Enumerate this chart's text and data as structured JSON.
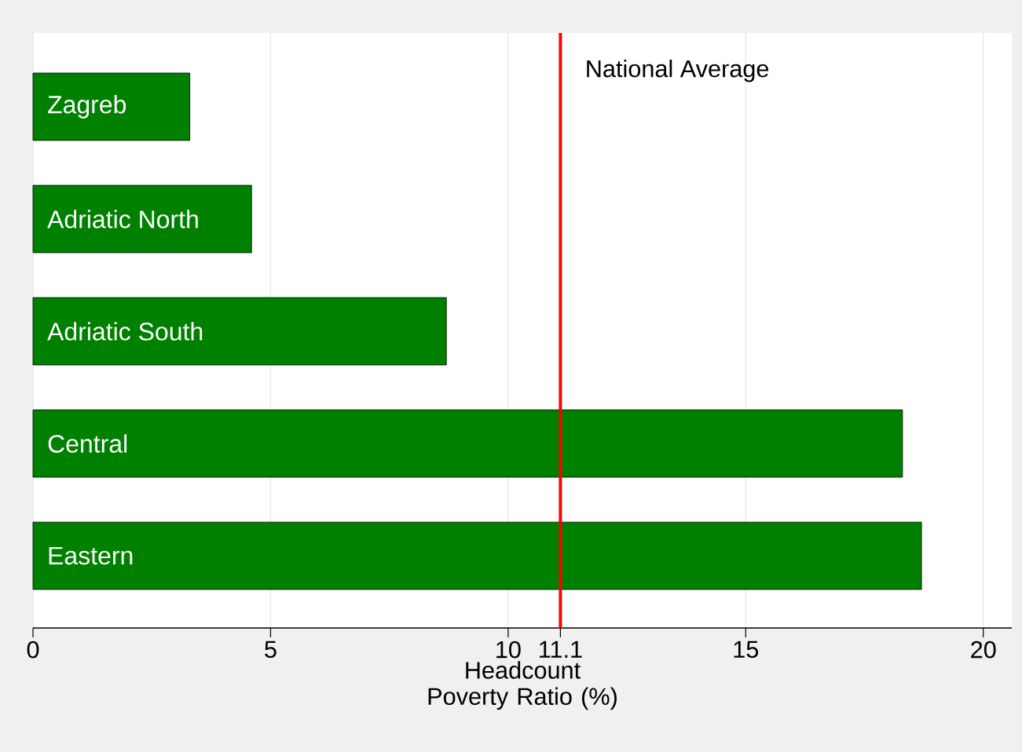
{
  "chart_data": {
    "type": "bar",
    "orientation": "horizontal",
    "xlabel": "Headcount Poverty Ratio (%)",
    "categories": [
      "Zagreb",
      "Adriatic North",
      "Adriatic South",
      "Central",
      "Eastern"
    ],
    "values": [
      3.3,
      4.6,
      8.7,
      18.3,
      18.7
    ],
    "color": "#008000",
    "xlim": [
      0,
      20.6
    ],
    "xticks": [
      0,
      5,
      10,
      11.1,
      15,
      20
    ],
    "grid": "x",
    "ref_lines": [
      {
        "axis": "x",
        "value": 11.1,
        "label": "National Average",
        "color": "#ff0000"
      }
    ]
  }
}
